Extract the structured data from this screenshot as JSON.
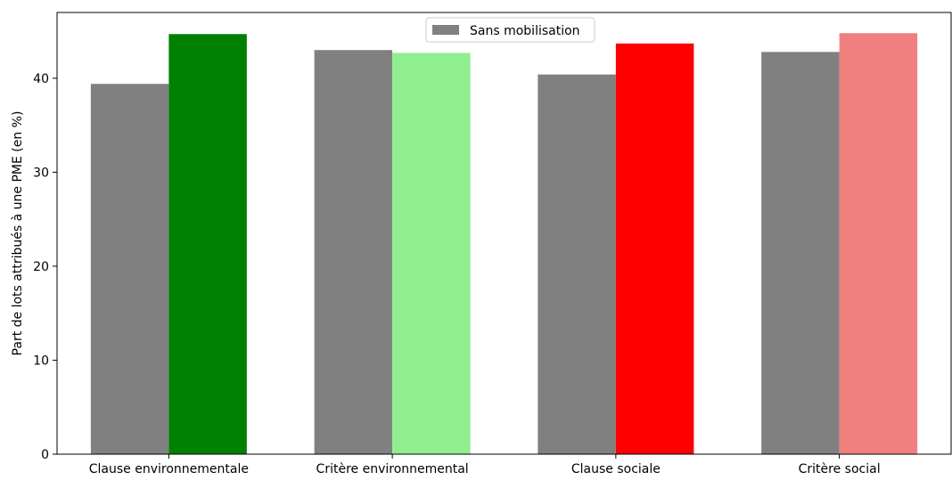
{
  "chart_data": {
    "type": "bar",
    "title": "",
    "xlabel": "",
    "ylabel": "Part de lots attribués à une PME (en %)",
    "ylim": [
      0,
      47
    ],
    "yticks": [
      0,
      10,
      20,
      30,
      40
    ],
    "grid": false,
    "legend": {
      "placement": "top-center",
      "entries": [
        {
          "label": "Sans mobilisation",
          "color": "#808080"
        }
      ]
    },
    "categories": [
      "Clause environnementale",
      "Critère environnemental",
      "Clause sociale",
      "Critère social"
    ],
    "series": [
      {
        "name": "Sans mobilisation",
        "values": [
          39.4,
          43.0,
          40.4,
          42.8
        ],
        "colors": [
          "#808080",
          "#808080",
          "#808080",
          "#808080"
        ]
      },
      {
        "values": [
          44.7,
          42.7,
          43.7,
          44.8
        ],
        "colors": [
          "#008000",
          "#90ee90",
          "#ff0000",
          "#f08080"
        ]
      }
    ]
  }
}
